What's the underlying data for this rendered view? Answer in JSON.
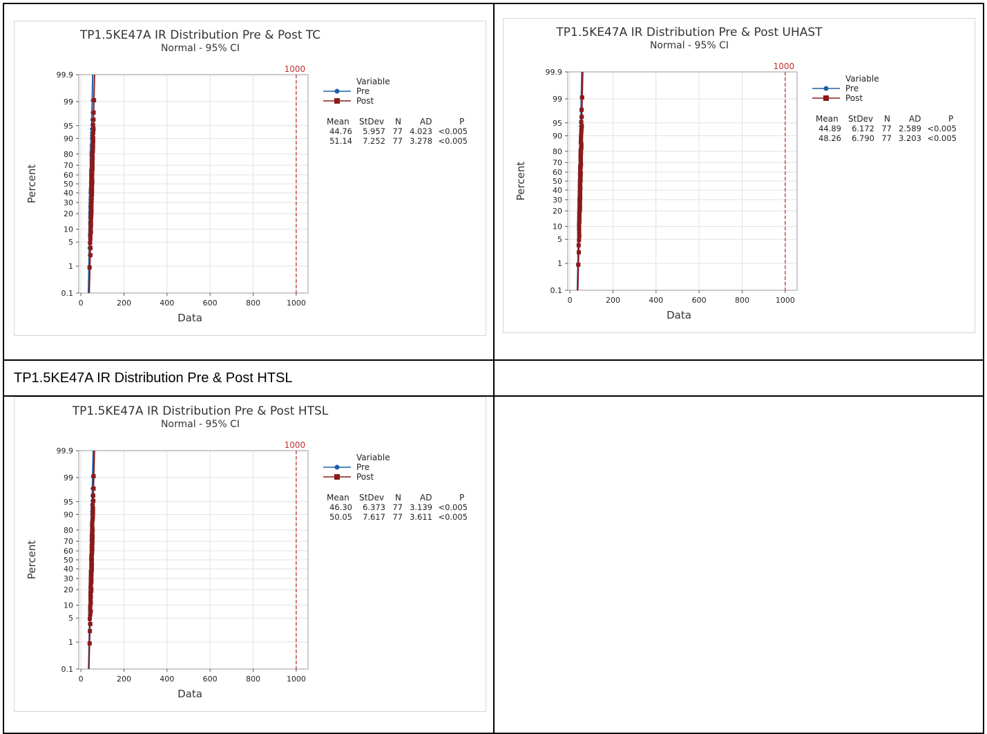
{
  "caption": "TP1.5KE47A IR Distribution Pre & Post HTSL",
  "colors": {
    "pre": "#1f5fa6",
    "post": "#8b1a1a",
    "ref": "#c0302c",
    "grid": "#e1e1e1",
    "frame": "#9a9a9a"
  },
  "chart_data": [
    {
      "type": "scatter",
      "title": "TP1.5KE47A IR Distribution Pre & Post TC",
      "subtitle": "Normal - 95% CI",
      "xlabel": "Data",
      "ylabel": "Percent",
      "xlim": [
        -10,
        1055
      ],
      "xticks": [
        0,
        200,
        400,
        600,
        800,
        1000
      ],
      "yscale": "normal-probability",
      "yticks": [
        0.1,
        1,
        5,
        10,
        20,
        30,
        40,
        50,
        60,
        70,
        80,
        90,
        95,
        99,
        99.9
      ],
      "reference_line": {
        "x": 1000,
        "label": "1000"
      },
      "legend_title": "Variable",
      "series": [
        {
          "name": "Pre",
          "marker": "circle",
          "mean": 44.76,
          "stdev": 5.957,
          "n": 77,
          "ad": 4.023,
          "p": "<0.005"
        },
        {
          "name": "Post",
          "marker": "square",
          "mean": 51.14,
          "stdev": 7.252,
          "n": 77,
          "ad": 3.278,
          "p": "<0.005"
        }
      ],
      "stats_headers": [
        "Mean",
        "StDev",
        "N",
        "AD",
        "P"
      ],
      "stats_rows": [
        [
          "44.76",
          "5.957",
          "77",
          "4.023",
          "<0.005"
        ],
        [
          "51.14",
          "7.252",
          "77",
          "3.278",
          "<0.005"
        ]
      ]
    },
    {
      "type": "scatter",
      "title": "TP1.5KE47A IR Distribution Pre & Post UHAST",
      "subtitle": "Normal - 95% CI",
      "xlabel": "Data",
      "ylabel": "Percent",
      "xlim": [
        -10,
        1055
      ],
      "xticks": [
        0,
        200,
        400,
        600,
        800,
        1000
      ],
      "yscale": "normal-probability",
      "yticks": [
        0.1,
        1,
        5,
        10,
        20,
        30,
        40,
        50,
        60,
        70,
        80,
        90,
        95,
        99,
        99.9
      ],
      "reference_line": {
        "x": 1000,
        "label": "1000"
      },
      "legend_title": "Variable",
      "series": [
        {
          "name": "Pre",
          "marker": "circle",
          "mean": 44.89,
          "stdev": 6.172,
          "n": 77,
          "ad": 2.589,
          "p": "<0.005"
        },
        {
          "name": "Post",
          "marker": "square",
          "mean": 48.26,
          "stdev": 6.79,
          "n": 77,
          "ad": 3.203,
          "p": "<0.005"
        }
      ],
      "stats_headers": [
        "Mean",
        "StDev",
        "N",
        "AD",
        "P"
      ],
      "stats_rows": [
        [
          "44.89",
          "6.172",
          "77",
          "2.589",
          "<0.005"
        ],
        [
          "48.26",
          "6.790",
          "77",
          "3.203",
          "<0.005"
        ]
      ]
    },
    {
      "type": "scatter",
      "title": "TP1.5KE47A IR Distribution Pre & Post HTSL",
      "subtitle": "Normal - 95% CI",
      "xlabel": "Data",
      "ylabel": "Percent",
      "xlim": [
        -10,
        1055
      ],
      "xticks": [
        0,
        200,
        400,
        600,
        800,
        1000
      ],
      "yscale": "normal-probability",
      "yticks": [
        0.1,
        1,
        5,
        10,
        20,
        30,
        40,
        50,
        60,
        70,
        80,
        90,
        95,
        99,
        99.9
      ],
      "reference_line": {
        "x": 1000,
        "label": "1000"
      },
      "legend_title": "Variable",
      "series": [
        {
          "name": "Pre",
          "marker": "circle",
          "mean": 46.3,
          "stdev": 6.373,
          "n": 77,
          "ad": 3.139,
          "p": "<0.005"
        },
        {
          "name": "Post",
          "marker": "square",
          "mean": 50.05,
          "stdev": 7.617,
          "n": 77,
          "ad": 3.611,
          "p": "<0.005"
        }
      ],
      "stats_headers": [
        "Mean",
        "StDev",
        "N",
        "AD",
        "P"
      ],
      "stats_rows": [
        [
          "46.30",
          "6.373",
          "77",
          "3.139",
          "<0.005"
        ],
        [
          "50.05",
          "7.617",
          "77",
          "3.611",
          "<0.005"
        ]
      ]
    }
  ]
}
